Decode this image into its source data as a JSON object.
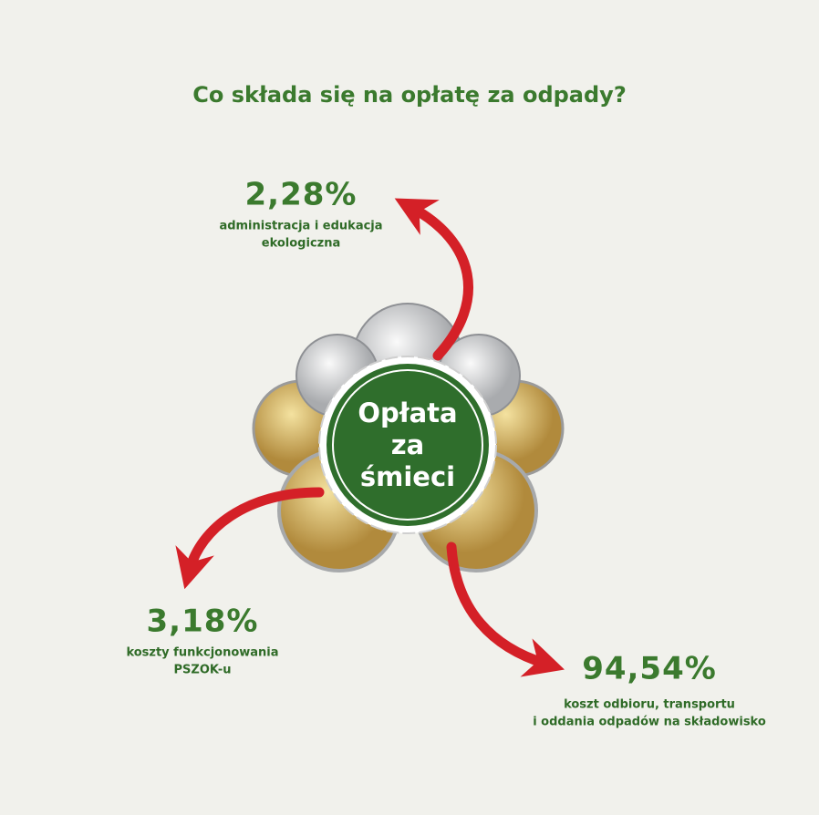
{
  "title": "Co składa się na opłatę za odpady?",
  "center": {
    "lines": [
      "Opłata",
      "za",
      "śmieci"
    ]
  },
  "items": [
    {
      "value": "2,28%",
      "label_lines": [
        "administracja i edukacja",
        "ekologiczna"
      ]
    },
    {
      "value": "3,18%",
      "label_lines": [
        "koszty funkcjonowania",
        "PSZOK-u"
      ]
    },
    {
      "value": "94,54%",
      "label_lines": [
        "koszt odbioru, transportu",
        "i oddania odpadów na składowisko"
      ]
    }
  ]
}
